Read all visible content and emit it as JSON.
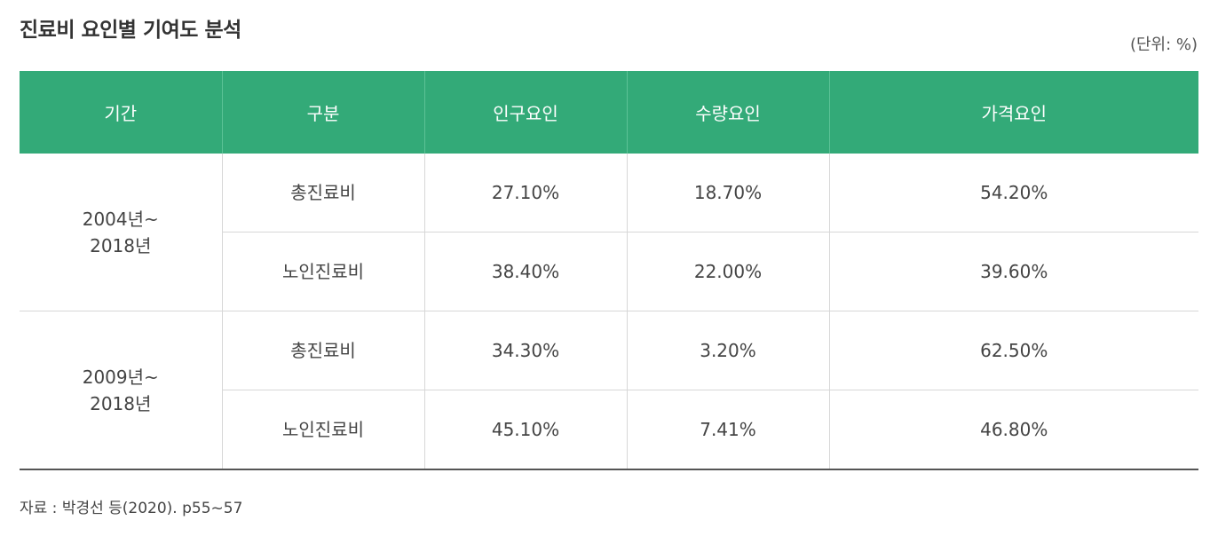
{
  "title": "진료비 요인별 기여도 분석",
  "unit": "(단위: %)",
  "table": {
    "headers": [
      "기간",
      "구분",
      "인구요인",
      "수량요인",
      "가격요인"
    ],
    "groups": [
      {
        "period_line1": "2004년~",
        "period_line2": "2018년",
        "rows": [
          {
            "category": "총진료비",
            "population": "27.10%",
            "quantity": "18.70%",
            "price": "54.20%"
          },
          {
            "category": "노인진료비",
            "population": "38.40%",
            "quantity": "22.00%",
            "price": "39.60%"
          }
        ]
      },
      {
        "period_line1": "2009년~",
        "period_line2": "2018년",
        "rows": [
          {
            "category": "총진료비",
            "population": "34.30%",
            "quantity": "3.20%",
            "price": "62.50%"
          },
          {
            "category": "노인진료비",
            "population": "45.10%",
            "quantity": "7.41%",
            "price": "46.80%"
          }
        ]
      }
    ]
  },
  "source": "자료 : 박경선 등(2020). p55~57"
}
